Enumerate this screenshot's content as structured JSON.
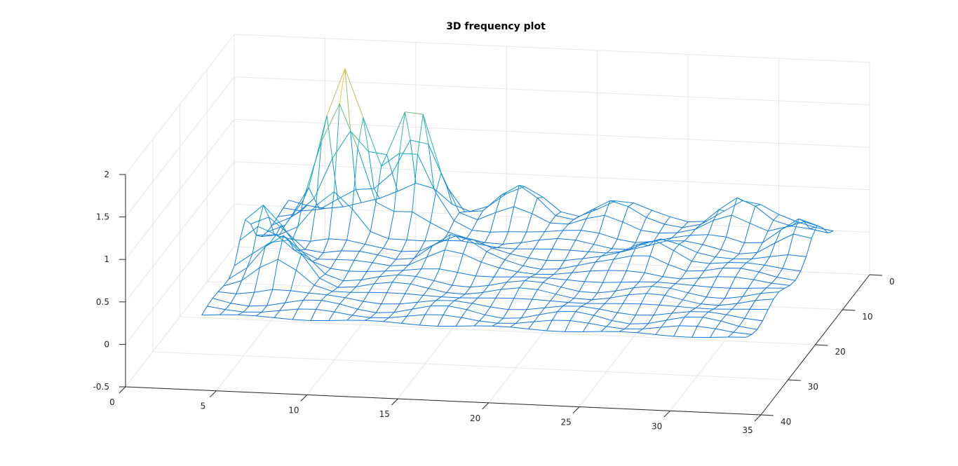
{
  "chart_data": {
    "type": "surface-mesh",
    "title": "3D frequency plot",
    "xlabel": "",
    "ylabel": "",
    "zlabel": "",
    "xlim": [
      0,
      35
    ],
    "ylim": [
      0,
      40
    ],
    "zlim": [
      -0.5,
      2
    ],
    "x_ticks": [
      "0",
      "5",
      "10",
      "15",
      "20",
      "25",
      "30",
      "35"
    ],
    "y_ticks": [
      "0",
      "10",
      "20",
      "30",
      "40"
    ],
    "z_ticks": [
      "-0.5",
      "0",
      "0.5",
      "1",
      "1.5",
      "2"
    ],
    "grid": true,
    "colormap": "parula",
    "surface": {
      "x_range": [
        3,
        33
      ],
      "y_range": [
        0,
        32
      ],
      "grid_size": [
        31,
        17
      ],
      "base_level": 0.05,
      "peaks": [
        {
          "x": 7,
          "y": 6.5,
          "z": 1.95
        },
        {
          "x": 10.5,
          "y": 4,
          "z": 1.45
        },
        {
          "x": 4,
          "y": 16,
          "z": 0.7
        },
        {
          "x": 6,
          "y": 22,
          "z": 0.55
        },
        {
          "x": 16,
          "y": 2,
          "z": 0.42
        },
        {
          "x": 21,
          "y": 2,
          "z": 0.32
        },
        {
          "x": 28,
          "y": 2,
          "z": 0.42
        },
        {
          "x": 32,
          "y": 6,
          "z": 0.35
        },
        {
          "x": 14,
          "y": 14,
          "z": 0.35
        },
        {
          "x": 25,
          "y": 12,
          "z": 0.32
        }
      ]
    },
    "colors": {
      "background": "#ffffff",
      "grid": "#e6e6e6",
      "axis": "#262626",
      "mesh_low": "#3e5bd8",
      "mesh_high": "#f9fb0e"
    }
  }
}
